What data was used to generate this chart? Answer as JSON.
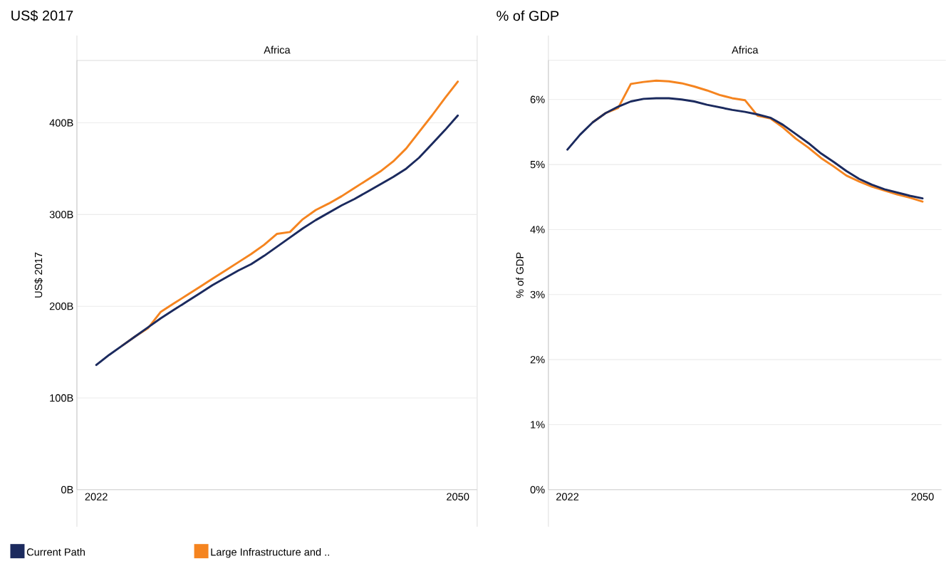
{
  "chart_data": [
    {
      "type": "line",
      "title": "US$ 2017",
      "subtitle": "Africa",
      "ylabel": "US$ 2017",
      "x": [
        2022,
        2023,
        2024,
        2025,
        2026,
        2027,
        2028,
        2029,
        2030,
        2031,
        2032,
        2033,
        2034,
        2035,
        2036,
        2037,
        2038,
        2039,
        2040,
        2041,
        2042,
        2043,
        2044,
        2045,
        2046,
        2047,
        2048,
        2049,
        2050
      ],
      "series": [
        {
          "name": "Current Path",
          "color": "#1b2a5e",
          "values": [
            136,
            147,
            157,
            167,
            177,
            187,
            196,
            205,
            214,
            223,
            231,
            239,
            246,
            255,
            265,
            275,
            285,
            294,
            302,
            310,
            317,
            325,
            333,
            341,
            350,
            362,
            377,
            392,
            408
          ]
        },
        {
          "name": "Large Infrastructure and ..",
          "color": "#f5841f",
          "values": [
            null,
            null,
            157,
            167,
            176,
            194,
            203,
            212,
            221,
            230,
            239,
            248,
            257,
            267,
            279,
            281,
            295,
            305,
            312,
            320,
            329,
            338,
            347,
            358,
            372,
            390,
            408,
            427,
            445
          ]
        }
      ],
      "xlim": [
        2020.5,
        2051.5
      ],
      "xticks": [
        2022,
        2050
      ],
      "ylim": [
        0,
        468
      ],
      "yticks": [
        {
          "value": 0,
          "label": "0B"
        },
        {
          "value": 100,
          "label": "100B"
        },
        {
          "value": 200,
          "label": "200B"
        },
        {
          "value": 300,
          "label": "300B"
        },
        {
          "value": 400,
          "label": "400B"
        }
      ],
      "grid": "y",
      "legend": "bottom",
      "marker": "none",
      "line_style": "solid"
    },
    {
      "type": "line",
      "title": "% of GDP",
      "subtitle": "Africa",
      "ylabel": "% of GDP",
      "x": [
        2022,
        2023,
        2024,
        2025,
        2026,
        2027,
        2028,
        2029,
        2030,
        2031,
        2032,
        2033,
        2034,
        2035,
        2036,
        2037,
        2038,
        2039,
        2040,
        2041,
        2042,
        2043,
        2044,
        2045,
        2046,
        2047,
        2048,
        2049,
        2050
      ],
      "series": [
        {
          "color": "#1b2a5e",
          "values": [
            5.23,
            5.46,
            5.65,
            5.79,
            5.89,
            5.97,
            6.01,
            6.02,
            6.02,
            6.0,
            5.97,
            5.92,
            5.88,
            5.84,
            5.81,
            5.77,
            5.72,
            5.61,
            5.47,
            5.33,
            5.17,
            5.04,
            4.9,
            4.78,
            4.69,
            4.62,
            4.57,
            4.52,
            4.48
          ]
        },
        {
          "color": "#f5841f",
          "values": [
            null,
            null,
            5.65,
            5.79,
            5.87,
            6.24,
            6.27,
            6.29,
            6.28,
            6.25,
            6.2,
            6.14,
            6.07,
            6.02,
            5.99,
            5.75,
            5.71,
            5.57,
            5.4,
            5.26,
            5.1,
            4.97,
            4.83,
            4.74,
            4.66,
            4.6,
            4.54,
            4.49,
            4.43
          ]
        }
      ],
      "xlim": [
        2020.5,
        2051.5
      ],
      "xticks": [
        2022,
        2050
      ],
      "ylim": [
        0,
        6.6
      ],
      "yticks": [
        {
          "value": 0,
          "label": "0%"
        },
        {
          "value": 1,
          "label": "1%"
        },
        {
          "value": 2,
          "label": "2%"
        },
        {
          "value": 3,
          "label": "3%"
        },
        {
          "value": 4,
          "label": "4%"
        },
        {
          "value": 5,
          "label": "5%"
        },
        {
          "value": 6,
          "label": "6%"
        }
      ],
      "grid": "y",
      "legend": false,
      "marker": "none",
      "line_style": "solid"
    }
  ]
}
